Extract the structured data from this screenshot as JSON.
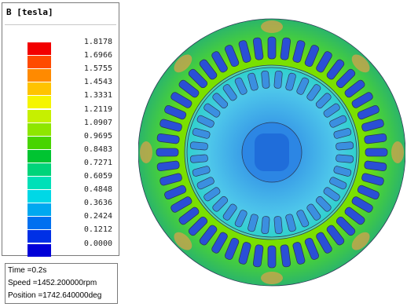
{
  "legend": {
    "title": "B [tesla]",
    "ticks": [
      "1.8178",
      "1.6966",
      "1.5755",
      "1.4543",
      "1.3331",
      "1.2119",
      "1.0907",
      "0.9695",
      "0.8483",
      "0.7271",
      "0.6059",
      "0.4848",
      "0.3636",
      "0.2424",
      "0.1212",
      "0.0000"
    ],
    "colors": [
      "#f20000",
      "#ff4a00",
      "#ff8a00",
      "#ffc300",
      "#f5f500",
      "#c6f000",
      "#8ee600",
      "#48d400",
      "#00c431",
      "#00d47a",
      "#00e0b8",
      "#00d8e6",
      "#00a8f0",
      "#0070f0",
      "#0030e6",
      "#0000d8"
    ]
  },
  "info": {
    "time": "Time    =0.2s",
    "speed": "Speed   =1452.200000rpm",
    "position": "Position =1742.640000deg"
  },
  "motor": {
    "stator_slots": 48,
    "rotor_slots": 36,
    "colors": {
      "yoke_outer": "#2fb86a",
      "yoke_edge": "#d6a34a",
      "tooth": "#9bd900",
      "air_gap_ring": "#54d6b4",
      "rotor_outer": "#34cfd8",
      "rotor_mid": "#57c6f0",
      "rotor_core": "#2e8fe6",
      "slot_fill": "#2a4fd6",
      "outline": "#2b3a55"
    }
  }
}
